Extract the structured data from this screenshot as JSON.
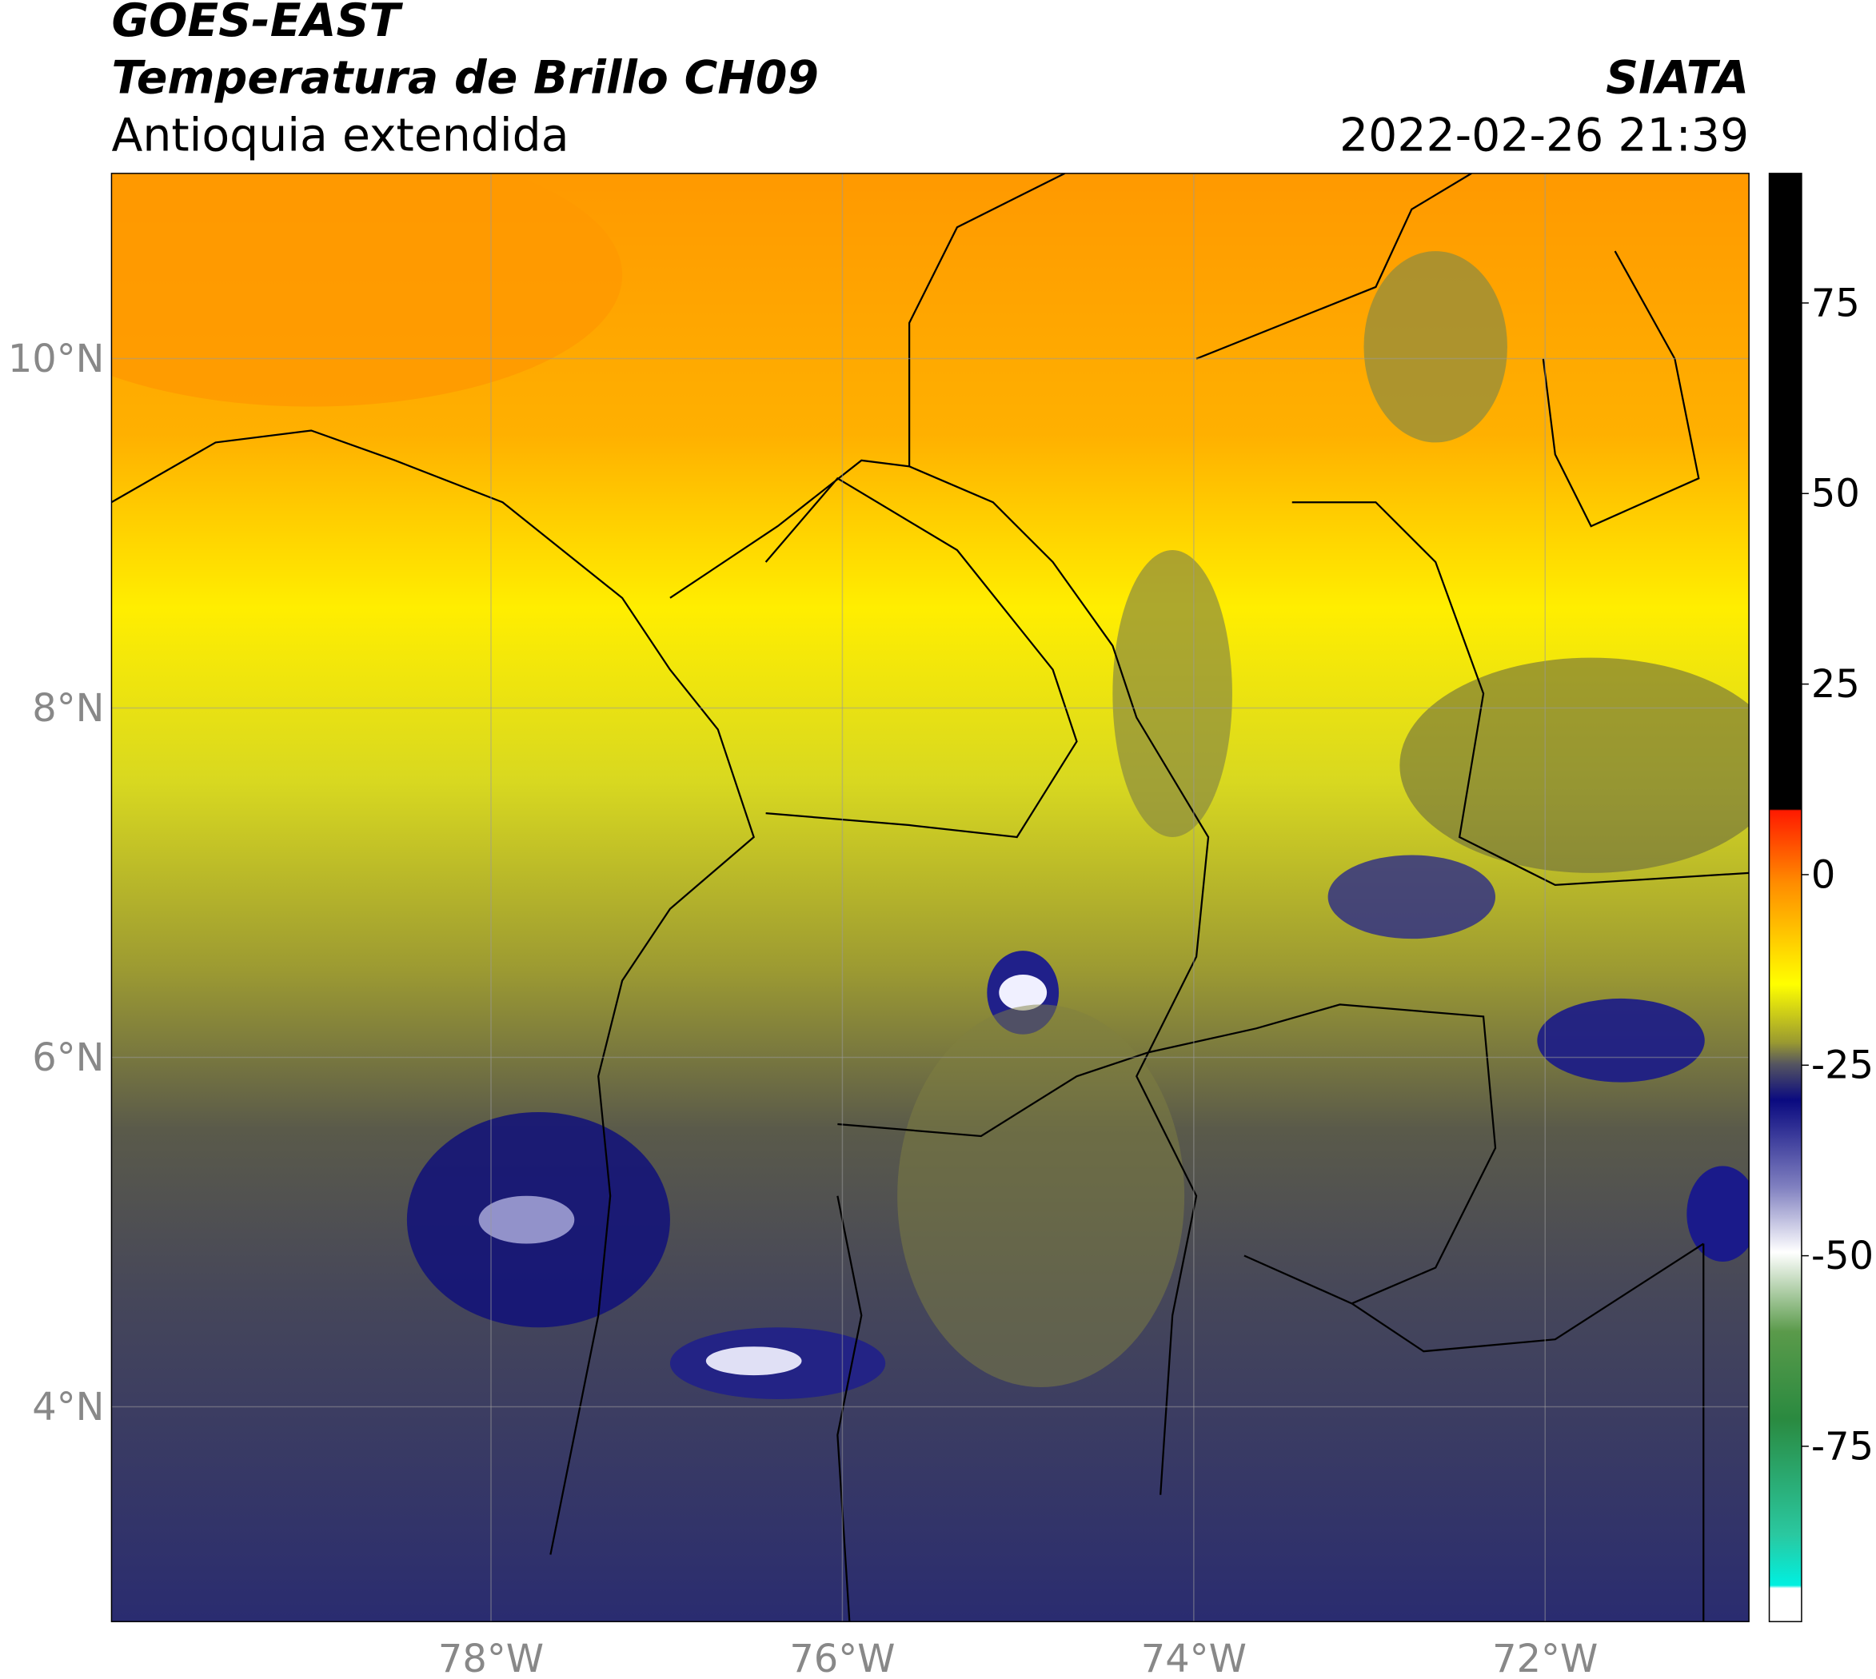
{
  "header": {
    "title": "GOES-EAST",
    "subtitle": "Temperatura de Brillo CH09",
    "region": "Antioquia extendida",
    "agency": "SIATA",
    "datetime": "2022-02-26 21:39"
  },
  "map": {
    "xlim": [
      -80.16,
      -70.84
    ],
    "ylim": [
      2.77,
      11.06
    ],
    "xticks": [
      {
        "value": -78,
        "label": "78°W"
      },
      {
        "value": -76,
        "label": "76°W"
      },
      {
        "value": -74,
        "label": "74°W"
      },
      {
        "value": -72,
        "label": "72°W"
      }
    ],
    "yticks": [
      {
        "value": 4,
        "label": "4°N"
      },
      {
        "value": 6,
        "label": "6°N"
      },
      {
        "value": 8,
        "label": "8°N"
      },
      {
        "value": 10,
        "label": "10°N"
      }
    ]
  },
  "colorbar": {
    "lim": [
      -98,
      92
    ],
    "ticks": [
      -75,
      -50,
      -25,
      0,
      25,
      50,
      75
    ]
  }
}
